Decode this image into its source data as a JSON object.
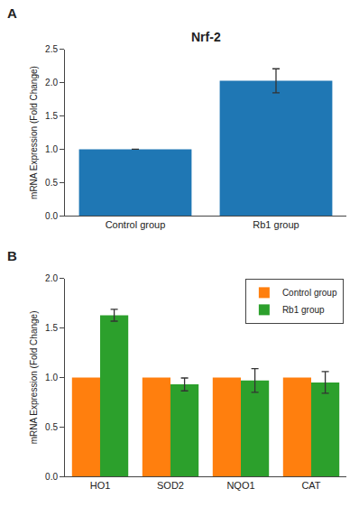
{
  "chart_data": [
    {
      "type": "bar",
      "title": "Nrf-2",
      "annotations": [
        "A"
      ],
      "categories": [
        "Control group",
        "Rb1 group"
      ],
      "values": [
        1.0,
        2.03
      ],
      "errors": [
        0.0,
        0.18
      ],
      "ylabel": "mRNA Expression (Fold Change)",
      "ylim": [
        0,
        2.5
      ],
      "yticks": [
        {
          "value": 0.0,
          "label": "0.0"
        },
        0.5,
        {
          "value": 1.0,
          "label": "1.0"
        },
        1.5,
        {
          "value": 2.0,
          "label": "2.0"
        },
        2.5
      ],
      "grid": false
    },
    {
      "type": "bar",
      "annotations": [
        "B"
      ],
      "categories": [
        "HO1",
        "SOD2",
        "NQO1",
        "CAT"
      ],
      "series": [
        {
          "name": "Control group",
          "values": [
            1.0,
            1.0,
            1.0,
            1.0
          ]
        },
        {
          "name": "Rb1 group",
          "values": [
            1.63,
            0.93,
            0.97,
            0.95
          ],
          "errors": [
            0.06,
            0.065,
            0.12,
            0.11
          ]
        }
      ],
      "ylabel": "mRNA Expression (Fold Change)",
      "ylim": [
        0,
        2.0
      ],
      "yticks": [
        {
          "value": 0.0,
          "label": "0.0"
        },
        0.5,
        {
          "value": 1.0,
          "label": "1.0"
        },
        1.5,
        {
          "value": 2.0,
          "label": "2.0"
        }
      ],
      "grid": false,
      "legend": "upper right"
    }
  ]
}
